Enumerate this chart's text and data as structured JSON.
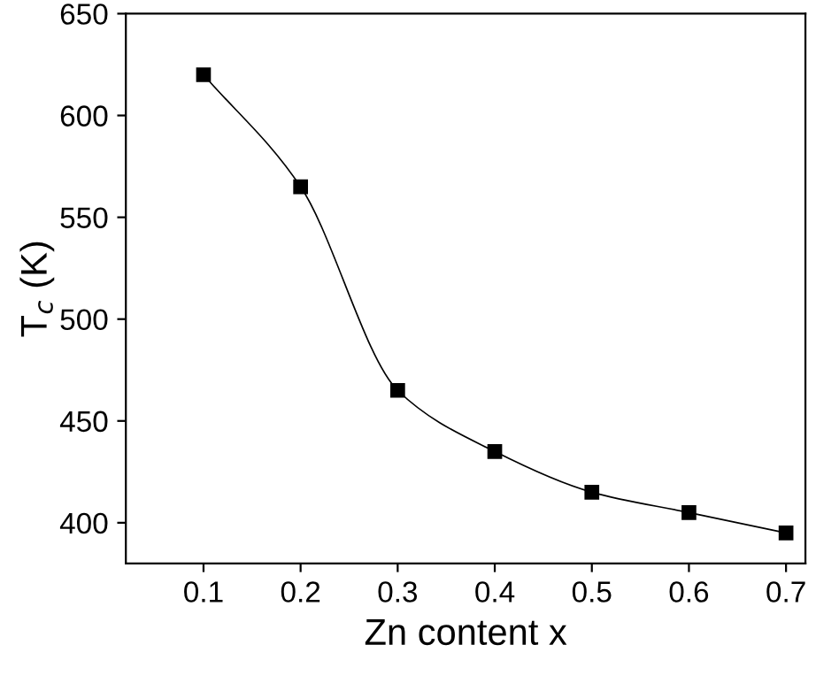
{
  "chart_data": {
    "type": "line",
    "xlabel": "Zn content x",
    "ylabel": "T$_{c}$ (K)",
    "x": [
      0.1,
      0.2,
      0.3,
      0.4,
      0.5,
      0.6,
      0.7
    ],
    "series": [
      {
        "color": "#000000",
        "values": [
          620,
          565,
          465,
          435,
          415,
          405,
          395
        ]
      }
    ],
    "marker": "square",
    "line_style": "solid",
    "grid": false,
    "xlim": [
      0.02,
      0.72
    ],
    "xticks": [
      0.1,
      0.2,
      0.3,
      0.4,
      0.5,
      0.6,
      0.7
    ],
    "ylim": [
      380,
      650
    ],
    "yticks": [
      400,
      450,
      500,
      550,
      600,
      650
    ]
  }
}
